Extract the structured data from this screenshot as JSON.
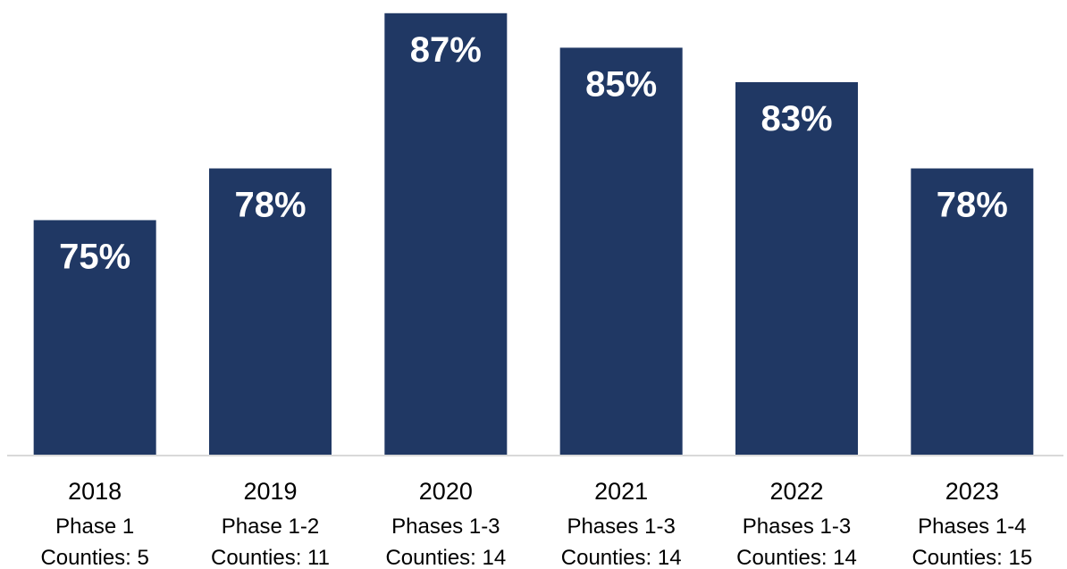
{
  "chart_data": {
    "type": "bar",
    "categories": [
      "2018",
      "2019",
      "2020",
      "2021",
      "2022",
      "2023"
    ],
    "values": [
      75,
      78,
      87,
      85,
      83,
      78
    ],
    "data_labels": [
      "75%",
      "78%",
      "87%",
      "85%",
      "83%",
      "78%"
    ],
    "phase_labels": [
      "Phase 1",
      "Phase 1-2",
      "Phases 1-3",
      "Phases 1-3",
      "Phases 1-3",
      "Phases 1-4"
    ],
    "county_labels": [
      "Counties: 5",
      "Counties: 11",
      "Counties: 14",
      "Counties: 14",
      "Counties: 14",
      "Counties: 15"
    ],
    "ylim": [
      61.4,
      87.3
    ],
    "grid": false,
    "legend": "none",
    "colors": {
      "bar": "#203864",
      "baseline": "#d9d9d9",
      "label_text": "#ffffff"
    }
  }
}
